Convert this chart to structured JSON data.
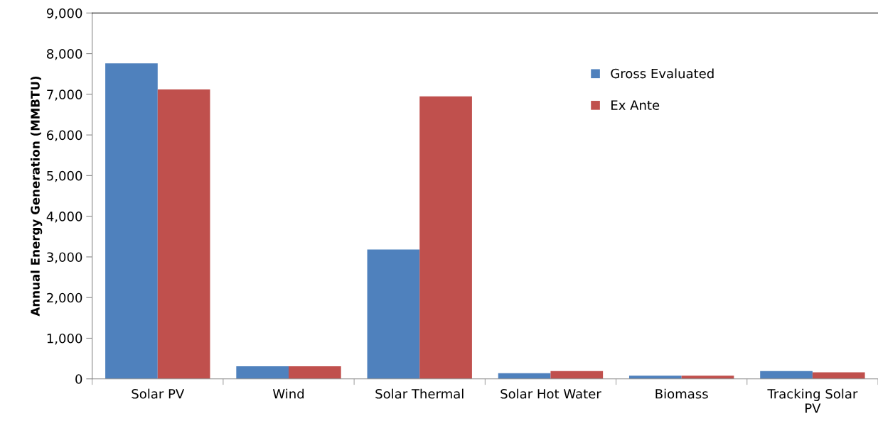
{
  "chart_data": {
    "type": "bar",
    "ylabel": "Annual Energy Generation (MMBTU)",
    "categories": [
      "Solar PV",
      "Wind",
      "Solar Thermal",
      "Solar Hot Water",
      "Biomass",
      "Tracking Solar\nPV"
    ],
    "series": [
      {
        "name": "Gross Evaluated",
        "color": "#4f81bd",
        "values": [
          7760,
          310,
          3180,
          140,
          80,
          190
        ]
      },
      {
        "name": "Ex Ante",
        "color": "#c0504d",
        "values": [
          7120,
          310,
          6950,
          190,
          80,
          160
        ]
      }
    ],
    "ylim": [
      0,
      9000
    ],
    "yticks": [
      {
        "value": 0,
        "label": "0"
      },
      {
        "value": 1000,
        "label": "1,000"
      },
      {
        "value": 2000,
        "label": "2,000"
      },
      {
        "value": 3000,
        "label": "3,000"
      },
      {
        "value": 4000,
        "label": "4,000"
      },
      {
        "value": 5000,
        "label": "5,000"
      },
      {
        "value": 6000,
        "label": "6,000"
      },
      {
        "value": 7000,
        "label": "7,000"
      },
      {
        "value": 8000,
        "label": "8,000"
      },
      {
        "value": 9000,
        "label": "9,000"
      }
    ],
    "grid": false,
    "legend": "top right"
  }
}
